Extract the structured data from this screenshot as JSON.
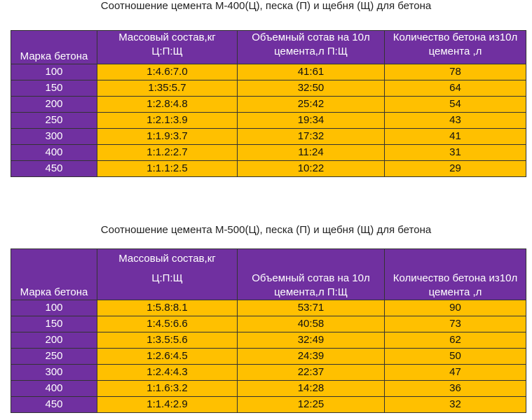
{
  "tables": [
    {
      "title": "Соотношение цемента М-400(Ц), песка (П) и щебня (Щ) для бетона",
      "header": [
        [
          "Марка бетона"
        ],
        [
          "Массовый состав,кг",
          "Ц:П:Щ"
        ],
        [
          "Объемный сотав на 10л",
          "цемента,л П:Щ"
        ],
        [
          "Количество бетона из10л",
          "цемента ,л"
        ]
      ],
      "rows": [
        [
          100,
          "1:4.6:7.0",
          "41:61",
          78
        ],
        [
          150,
          "1:35:5.7",
          "32:50",
          64
        ],
        [
          200,
          "1:2.8:4.8",
          "25:42",
          54
        ],
        [
          250,
          "1:2.1:3.9",
          "19:34",
          43
        ],
        [
          300,
          "1:1.9:3.7",
          "17:32",
          41
        ],
        [
          400,
          "1:1.2:2.7",
          "11:24",
          31
        ],
        [
          450,
          "1:1.1:2.5",
          "10:22",
          29
        ]
      ]
    },
    {
      "title": "Соотношение цемента М-500(Ц), песка (П) и щебня (Щ) для бетона",
      "header": [
        [
          "Марка бетона"
        ],
        [
          "Массовый состав,кг",
          "Ц:П:Щ"
        ],
        [
          "Объемный сотав на 10л",
          "цемента,л П:Щ"
        ],
        [
          "Количество бетона из10л",
          "цемента ,л"
        ]
      ],
      "rows": [
        [
          100,
          "1:5.8:8.1",
          "53:71",
          90
        ],
        [
          150,
          "1:4.5:6.6",
          "40:58",
          73
        ],
        [
          200,
          "1:3.5:5.6",
          "32:49",
          62
        ],
        [
          250,
          "1:2.6:4.5",
          "24:39",
          50
        ],
        [
          300,
          "1:2.4:4.3",
          "22:37",
          47
        ],
        [
          400,
          "1:1.6:3.2",
          "14:28",
          36
        ],
        [
          450,
          "1:1.4:2.9",
          "12:25",
          32
        ]
      ]
    }
  ]
}
